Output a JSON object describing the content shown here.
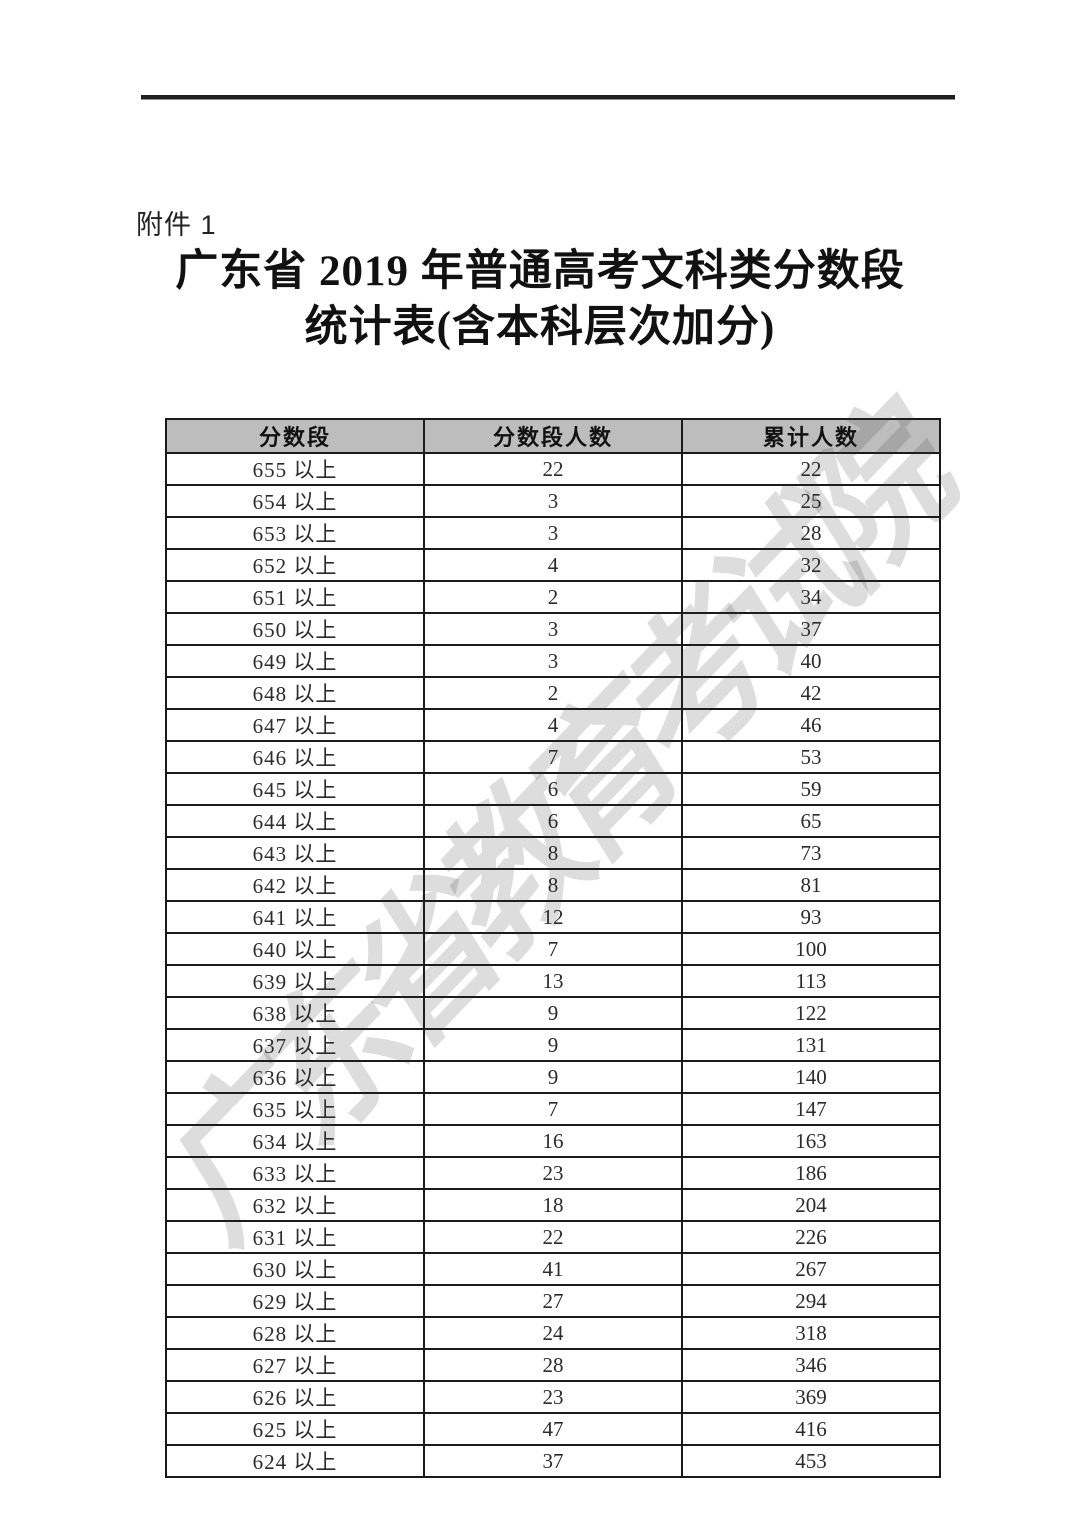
{
  "attachment_label": "附件 1",
  "title": {
    "line1": "广东省 2019 年普通高考文科类分数段",
    "line2": "统计表(含本科层次加分)"
  },
  "watermark_text": "广东省教育考试院",
  "colors": {
    "header_background": "#bdbdbd",
    "table_border": "#1a1a1a",
    "text": "#1a1a1a",
    "watermark": "#d4d4d4"
  },
  "table": {
    "headers": [
      "分数段",
      "分数段人数",
      "累计人数"
    ],
    "rows": [
      [
        "655 以上",
        "22",
        "22"
      ],
      [
        "654 以上",
        "3",
        "25"
      ],
      [
        "653 以上",
        "3",
        "28"
      ],
      [
        "652 以上",
        "4",
        "32"
      ],
      [
        "651 以上",
        "2",
        "34"
      ],
      [
        "650 以上",
        "3",
        "37"
      ],
      [
        "649 以上",
        "3",
        "40"
      ],
      [
        "648 以上",
        "2",
        "42"
      ],
      [
        "647 以上",
        "4",
        "46"
      ],
      [
        "646 以上",
        "7",
        "53"
      ],
      [
        "645 以上",
        "6",
        "59"
      ],
      [
        "644 以上",
        "6",
        "65"
      ],
      [
        "643 以上",
        "8",
        "73"
      ],
      [
        "642 以上",
        "8",
        "81"
      ],
      [
        "641 以上",
        "12",
        "93"
      ],
      [
        "640 以上",
        "7",
        "100"
      ],
      [
        "639 以上",
        "13",
        "113"
      ],
      [
        "638 以上",
        "9",
        "122"
      ],
      [
        "637 以上",
        "9",
        "131"
      ],
      [
        "636 以上",
        "9",
        "140"
      ],
      [
        "635 以上",
        "7",
        "147"
      ],
      [
        "634 以上",
        "16",
        "163"
      ],
      [
        "633 以上",
        "23",
        "186"
      ],
      [
        "632 以上",
        "18",
        "204"
      ],
      [
        "631 以上",
        "22",
        "226"
      ],
      [
        "630 以上",
        "41",
        "267"
      ],
      [
        "629 以上",
        "27",
        "294"
      ],
      [
        "628 以上",
        "24",
        "318"
      ],
      [
        "627 以上",
        "28",
        "346"
      ],
      [
        "626 以上",
        "23",
        "369"
      ],
      [
        "625 以上",
        "47",
        "416"
      ],
      [
        "624 以上",
        "37",
        "453"
      ]
    ]
  }
}
